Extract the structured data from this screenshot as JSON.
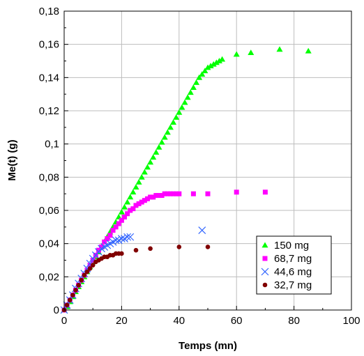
{
  "chart_data": {
    "type": "scatter",
    "title": "",
    "xlabel": "Temps (mn)",
    "ylabel": "Me(t) (g)",
    "xlim": [
      0,
      100
    ],
    "ylim": [
      0,
      0.18
    ],
    "xticks": [
      0,
      20,
      40,
      60,
      80,
      100
    ],
    "yticks": [
      0,
      0.02,
      0.04,
      0.06,
      0.08,
      0.1,
      0.12,
      0.14,
      0.16,
      0.18
    ],
    "xtick_labels": [
      "0",
      "20",
      "40",
      "60",
      "80",
      "100"
    ],
    "ytick_labels": [
      "0",
      "0,02",
      "0,04",
      "0,06",
      "0,08",
      "0,1",
      "0,12",
      "0,14",
      "0,16",
      "0,18"
    ],
    "grid": true,
    "legend_position": "bottom-right",
    "series": [
      {
        "name": "150 mg",
        "marker": "triangle",
        "color": "#00ff00",
        "x": [
          0,
          1,
          2,
          3,
          4,
          5,
          6,
          7,
          8,
          9,
          10,
          11,
          12,
          13,
          14,
          15,
          16,
          17,
          18,
          19,
          20,
          21,
          22,
          23,
          24,
          25,
          26,
          27,
          28,
          29,
          30,
          31,
          32,
          33,
          34,
          35,
          36,
          37,
          38,
          39,
          40,
          41,
          42,
          43,
          44,
          45,
          46,
          47,
          48,
          49,
          50,
          51,
          52,
          53,
          54,
          55,
          60,
          65,
          75,
          85
        ],
        "y": [
          0,
          0.002,
          0.005,
          0.008,
          0.011,
          0.014,
          0.017,
          0.02,
          0.023,
          0.026,
          0.029,
          0.032,
          0.035,
          0.038,
          0.041,
          0.044,
          0.047,
          0.05,
          0.053,
          0.056,
          0.059,
          0.062,
          0.065,
          0.068,
          0.071,
          0.074,
          0.077,
          0.08,
          0.083,
          0.086,
          0.089,
          0.092,
          0.095,
          0.098,
          0.101,
          0.104,
          0.107,
          0.11,
          0.113,
          0.116,
          0.119,
          0.122,
          0.125,
          0.128,
          0.131,
          0.134,
          0.137,
          0.14,
          0.142,
          0.144,
          0.146,
          0.147,
          0.148,
          0.149,
          0.15,
          0.151,
          0.154,
          0.155,
          0.157,
          0.156
        ]
      },
      {
        "name": "68,7 mg",
        "marker": "square",
        "color": "#ff00ff",
        "x": [
          0,
          1,
          2,
          3,
          4,
          5,
          6,
          7,
          8,
          9,
          10,
          11,
          12,
          13,
          14,
          15,
          16,
          17,
          18,
          19,
          20,
          21,
          22,
          23,
          24,
          25,
          26,
          27,
          28,
          29,
          30,
          31,
          32,
          33,
          34,
          35,
          36,
          37,
          38,
          39,
          40,
          45,
          50,
          60,
          70
        ],
        "y": [
          0,
          0.003,
          0.006,
          0.009,
          0.012,
          0.015,
          0.018,
          0.021,
          0.024,
          0.027,
          0.03,
          0.033,
          0.036,
          0.038,
          0.041,
          0.043,
          0.045,
          0.048,
          0.05,
          0.052,
          0.054,
          0.056,
          0.058,
          0.06,
          0.061,
          0.063,
          0.064,
          0.065,
          0.066,
          0.067,
          0.068,
          0.068,
          0.069,
          0.069,
          0.069,
          0.07,
          0.07,
          0.07,
          0.07,
          0.07,
          0.07,
          0.07,
          0.07,
          0.071,
          0.071
        ]
      },
      {
        "name": "44,6 mg",
        "marker": "x",
        "color": "#3366ff",
        "x": [
          0,
          1,
          2,
          3,
          4,
          5,
          6,
          7,
          8,
          9,
          10,
          11,
          12,
          13,
          14,
          15,
          16,
          17,
          18,
          19,
          20,
          21,
          22,
          23,
          48
        ],
        "y": [
          0,
          0.003,
          0.006,
          0.009,
          0.013,
          0.016,
          0.019,
          0.022,
          0.025,
          0.028,
          0.031,
          0.033,
          0.035,
          0.037,
          0.038,
          0.039,
          0.04,
          0.041,
          0.042,
          0.042,
          0.043,
          0.043,
          0.044,
          0.044,
          0.048
        ]
      },
      {
        "name": "32,7 mg",
        "marker": "circle",
        "color": "#800000",
        "x": [
          0,
          1,
          2,
          3,
          4,
          5,
          6,
          7,
          8,
          9,
          10,
          11,
          12,
          13,
          14,
          15,
          16,
          17,
          18,
          19,
          20,
          25,
          30,
          40,
          50
        ],
        "y": [
          0,
          0.003,
          0.006,
          0.009,
          0.012,
          0.015,
          0.018,
          0.021,
          0.023,
          0.025,
          0.027,
          0.029,
          0.03,
          0.031,
          0.032,
          0.032,
          0.033,
          0.033,
          0.034,
          0.034,
          0.034,
          0.036,
          0.037,
          0.038,
          0.038
        ]
      }
    ]
  }
}
